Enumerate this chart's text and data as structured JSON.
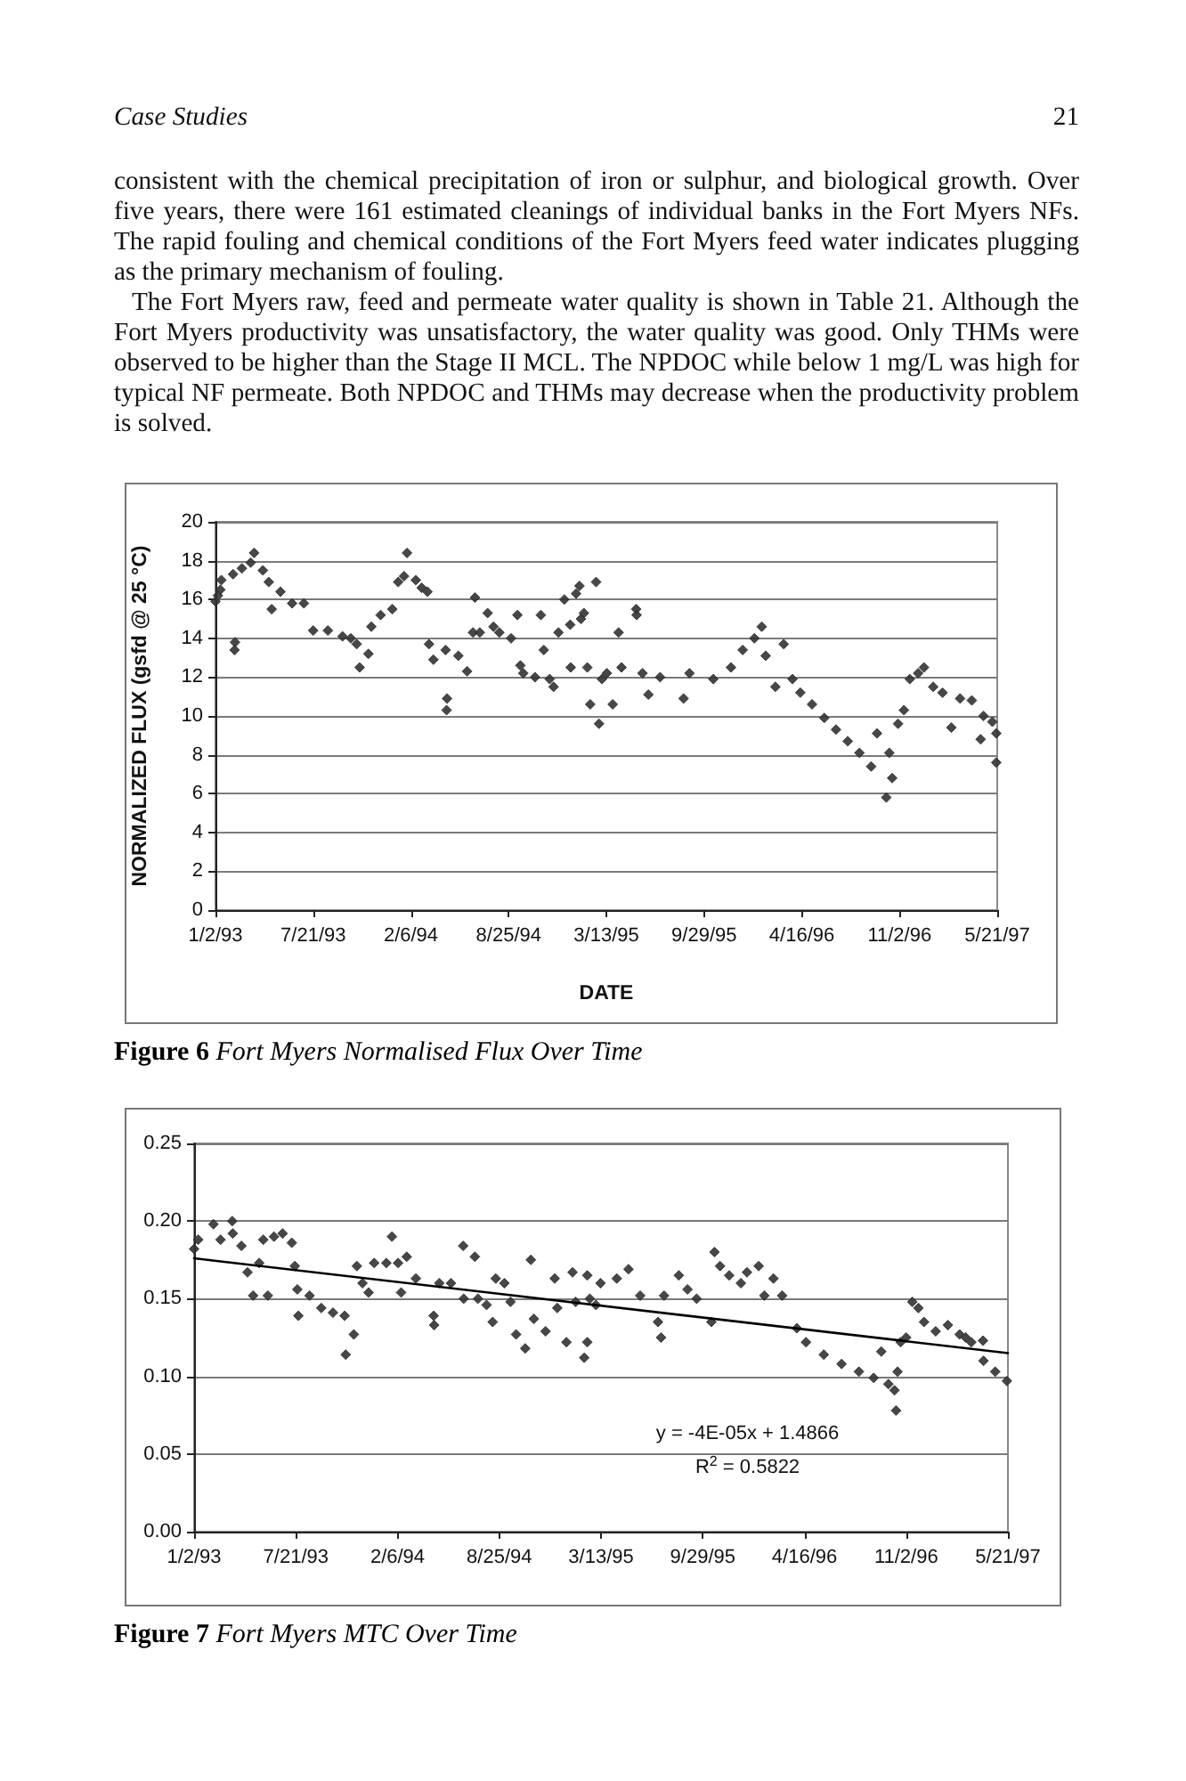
{
  "chart_data": [
    {
      "type": "scatter",
      "title": "Figure 6 Fort Myers Normalised Flux Over Time",
      "xlabel": "DATE",
      "ylabel": "NORMALIZED FLUX (gsfd @ 25 °C)",
      "annotations": [
        "Case Studies",
        "21",
        "consistent with the chemical precipitation of iron or sulphur, and biological growth. Over five years, there were 161 estimated cleanings of individual banks in the Fort Myers NFs. The rapid fouling and chemical conditions of the Fort Myers feed water indicates plugging as the primary mechanism of fouling.",
        "The Fort Myers raw, feed and permeate water quality is shown in Table 21. Although the Fort Myers productivity was unsatisfactory, the water quality was good. Only THMs were observed to be higher than the Stage II MCL. The NPDOC while below 1 mg/L was high for typical NF permeate. Both NPDOC and THMs may decrease when the productivity problem is solved."
      ],
      "xlim": [
        "1993-01-02",
        "1997-05-21"
      ],
      "xticks": [
        {
          "value": "1993-01-02",
          "label": "1/2/93"
        },
        {
          "value": "1993-07-21",
          "label": "7/21/93"
        },
        {
          "value": "1994-02-06",
          "label": "2/6/94"
        },
        {
          "value": "1994-08-25",
          "label": "8/25/94"
        },
        {
          "value": "1995-03-13",
          "label": "3/13/95"
        },
        {
          "value": "1995-09-29",
          "label": "9/29/95"
        },
        {
          "value": "1996-04-16",
          "label": "4/16/96"
        },
        {
          "value": "1996-11-02",
          "label": "11/2/96"
        },
        {
          "value": "1997-05-21",
          "label": "5/21/97"
        }
      ],
      "ylim": [
        0,
        20
      ],
      "yticks": [
        0,
        2,
        4,
        6,
        8,
        10,
        12,
        14,
        16,
        18,
        20
      ],
      "grid": "y",
      "marker": "diamond",
      "series": [
        {
          "color": "#333333",
          "x": [
            "1993-01-02",
            "1993-01-07",
            "1993-01-12",
            "1993-01-14",
            "1993-02-07",
            "1993-02-10",
            "1993-02-11",
            "1993-02-25",
            "1993-03-15",
            "1993-03-22",
            "1993-04-09",
            "1993-04-21",
            "1993-04-27",
            "1993-05-15",
            "1993-06-08",
            "1993-07-02",
            "1993-07-21",
            "1993-08-20",
            "1993-09-19",
            "1993-10-06",
            "1993-10-18",
            "1993-10-24",
            "1993-11-11",
            "1993-11-17",
            "1993-12-06",
            "1993-12-30",
            "1994-01-11",
            "1994-01-23",
            "1994-01-29",
            "1994-02-16",
            "1994-02-28",
            "1994-03-12",
            "1994-03-15",
            "1994-03-24",
            "1994-04-18",
            "1994-04-20",
            "1994-04-21",
            "1994-05-14",
            "1994-06-01",
            "1994-06-13",
            "1994-06-17",
            "1994-06-27",
            "1994-07-13",
            "1994-07-25",
            "1994-08-06",
            "1994-08-30",
            "1994-09-12",
            "1994-09-18",
            "1994-09-24",
            "1994-10-18",
            "1994-10-30",
            "1994-11-05",
            "1994-11-17",
            "1994-11-25",
            "1994-12-05",
            "1994-12-17",
            "1994-12-29",
            "1994-12-30",
            "1995-01-10",
            "1995-01-17",
            "1995-01-20",
            "1995-01-26",
            "1995-02-02",
            "1995-02-08",
            "1995-02-20",
            "1995-02-26",
            "1995-03-04",
            "1995-03-14",
            "1995-03-26",
            "1995-04-07",
            "1995-04-13",
            "1995-05-13",
            "1995-05-14",
            "1995-05-26",
            "1995-06-07",
            "1995-07-01",
            "1995-08-18",
            "1995-08-30",
            "1995-10-18",
            "1995-11-23",
            "1995-12-17",
            "1996-01-10",
            "1996-01-25",
            "1996-02-02",
            "1996-02-22",
            "1996-03-10",
            "1996-03-28",
            "1996-04-13",
            "1996-05-07",
            "1996-06-01",
            "1996-06-25",
            "1996-07-19",
            "1996-08-12",
            "1996-09-05",
            "1996-09-17",
            "1996-10-06",
            "1996-10-12",
            "1996-10-18",
            "1996-10-30",
            "1996-11-11",
            "1996-11-23",
            "1996-12-10",
            "1996-12-22",
            "1997-01-10",
            "1997-01-29",
            "1997-02-16",
            "1997-03-06",
            "1997-03-30",
            "1997-04-17",
            "1997-04-23",
            "1997-05-11",
            "1997-05-19",
            "1997-05-19"
          ],
          "values": [
            15.9,
            16.2,
            16.5,
            17.0,
            17.3,
            13.4,
            13.8,
            17.6,
            17.9,
            18.4,
            17.5,
            16.9,
            15.5,
            16.4,
            15.8,
            15.8,
            14.4,
            14.4,
            14.1,
            14.0,
            13.7,
            12.5,
            13.2,
            14.6,
            15.2,
            15.5,
            16.9,
            17.2,
            18.4,
            17.0,
            16.6,
            16.4,
            13.7,
            12.9,
            13.4,
            10.3,
            10.9,
            13.1,
            12.3,
            14.3,
            16.1,
            14.3,
            15.3,
            14.6,
            14.3,
            14.0,
            15.2,
            12.6,
            12.2,
            12.0,
            15.2,
            13.4,
            11.9,
            11.5,
            14.3,
            16.0,
            14.7,
            12.5,
            16.3,
            16.7,
            15.0,
            15.3,
            12.5,
            10.6,
            16.9,
            9.6,
            11.9,
            12.2,
            10.6,
            14.3,
            12.5,
            15.5,
            15.2,
            12.2,
            11.1,
            12.0,
            10.9,
            12.2,
            11.9,
            12.5,
            13.4,
            14.0,
            14.6,
            13.1,
            11.5,
            13.7,
            11.9,
            11.2,
            10.6,
            9.9,
            9.3,
            8.7,
            8.1,
            7.4,
            9.1,
            5.8,
            8.1,
            6.8,
            9.6,
            10.3,
            11.9,
            12.2,
            12.5,
            11.5,
            11.2,
            9.4,
            10.9,
            10.8,
            8.8,
            10.0,
            9.7,
            9.1,
            7.6
          ]
        }
      ]
    },
    {
      "type": "scatter",
      "title": "Figure 7 Fort Myers MTC Over Time",
      "annotations": [
        "y = -4E-05x + 1.4866",
        "R$^{2}$ = 0.5822"
      ],
      "xlim": [
        "1993-01-02",
        "1997-05-21"
      ],
      "xticks": [
        {
          "value": "1993-01-02",
          "label": "1/2/93"
        },
        {
          "value": "1993-07-21",
          "label": "7/21/93"
        },
        {
          "value": "1994-02-06",
          "label": "2/6/94"
        },
        {
          "value": "1994-08-25",
          "label": "8/25/94"
        },
        {
          "value": "1995-03-13",
          "label": "3/13/95"
        },
        {
          "value": "1995-09-29",
          "label": "9/29/95"
        },
        {
          "value": "1996-04-16",
          "label": "4/16/96"
        },
        {
          "value": "1996-11-02",
          "label": "11/2/96"
        },
        {
          "value": "1997-05-21",
          "label": "5/21/97"
        }
      ],
      "ylim": [
        0,
        0.25
      ],
      "yticks": [
        {
          "value": 0,
          "label": "0.00"
        },
        0.05,
        {
          "value": 0.1,
          "label": "0.10"
        },
        0.15,
        {
          "value": 0.2,
          "label": "0.20"
        },
        0.25
      ],
      "grid": "y",
      "marker": "diamond",
      "series": [
        {
          "color": "#333333",
          "x": [
            "1993-01-02",
            "1993-01-10",
            "1993-02-09",
            "1993-02-23",
            "1993-03-18",
            "1993-03-19",
            "1993-04-05",
            "1993-04-17",
            "1993-04-28",
            "1993-05-10",
            "1993-05-18",
            "1993-05-27",
            "1993-06-08",
            "1993-06-25",
            "1993-07-13",
            "1993-07-19",
            "1993-07-24",
            "1993-07-26",
            "1993-08-17",
            "1993-09-09",
            "1993-10-02",
            "1993-10-25",
            "1993-10-27",
            "1993-11-12",
            "1993-11-18",
            "1993-11-29",
            "1993-12-11",
            "1993-12-22",
            "1994-01-15",
            "1994-01-26",
            "1994-02-07",
            "1994-02-13",
            "1994-02-24",
            "1994-03-14",
            "1994-04-18",
            "1994-04-19",
            "1994-04-29",
            "1994-05-22",
            "1994-06-15",
            "1994-06-16",
            "1994-07-08",
            "1994-07-14",
            "1994-07-31",
            "1994-08-12",
            "1994-08-18",
            "1994-09-04",
            "1994-09-16",
            "1994-09-27",
            "1994-10-15",
            "1994-10-26",
            "1994-11-01",
            "1994-11-24",
            "1994-12-12",
            "1994-12-17",
            "1995-01-04",
            "1995-01-16",
            "1995-01-22",
            "1995-02-08",
            "1995-02-14",
            "1995-02-14",
            "1995-02-19",
            "1995-03-03",
            "1995-03-12",
            "1995-04-13",
            "1995-05-06",
            "1995-05-29",
            "1995-07-03",
            "1995-07-09",
            "1995-07-15",
            "1995-08-13",
            "1995-08-30",
            "1995-09-17",
            "1995-10-16",
            "1995-10-22",
            "1995-11-02",
            "1995-11-20",
            "1995-12-13",
            "1995-12-25",
            "1996-01-17",
            "1996-01-28",
            "1996-02-15",
            "1996-03-03",
            "1996-04-01",
            "1996-04-19",
            "1996-05-24",
            "1996-06-28",
            "1996-08-01",
            "1996-08-30",
            "1996-09-14",
            "1996-09-28",
            "1996-10-10",
            "1996-10-13",
            "1996-10-16",
            "1996-10-22",
            "1996-11-02",
            "1996-11-14",
            "1996-11-26",
            "1996-12-07",
            "1996-12-30",
            "1997-01-23",
            "1997-02-15",
            "1997-02-27",
            "1997-03-10",
            "1997-04-02",
            "1997-04-03",
            "1997-04-26",
            "1997-05-19"
          ],
          "values": [
            0.182,
            0.188,
            0.198,
            0.188,
            0.2,
            0.192,
            0.184,
            0.167,
            0.152,
            0.173,
            0.188,
            0.152,
            0.19,
            0.192,
            0.186,
            0.171,
            0.156,
            0.139,
            0.152,
            0.144,
            0.141,
            0.139,
            0.114,
            0.127,
            0.171,
            0.16,
            0.154,
            0.173,
            0.173,
            0.19,
            0.173,
            0.154,
            0.177,
            0.163,
            0.139,
            0.133,
            0.16,
            0.16,
            0.184,
            0.15,
            0.177,
            0.15,
            0.146,
            0.135,
            0.163,
            0.16,
            0.148,
            0.127,
            0.118,
            0.175,
            0.137,
            0.129,
            0.163,
            0.144,
            0.122,
            0.167,
            0.148,
            0.112,
            0.165,
            0.122,
            0.15,
            0.146,
            0.16,
            0.163,
            0.169,
            0.152,
            0.135,
            0.125,
            0.152,
            0.165,
            0.156,
            0.15,
            0.135,
            0.18,
            0.171,
            0.165,
            0.16,
            0.167,
            0.171,
            0.152,
            0.163,
            0.152,
            0.131,
            0.122,
            0.114,
            0.108,
            0.103,
            0.099,
            0.116,
            0.095,
            0.091,
            0.078,
            0.103,
            0.122,
            0.125,
            0.148,
            0.144,
            0.135,
            0.129,
            0.133,
            0.127,
            0.125,
            0.122,
            0.123,
            0.11,
            0.103,
            0.097
          ]
        },
        {
          "type": "line",
          "color": "#000000",
          "marker": "none",
          "x": [
            "1993-01-02",
            "1997-05-21"
          ],
          "values": [
            0.176,
            0.115
          ]
        }
      ]
    }
  ]
}
